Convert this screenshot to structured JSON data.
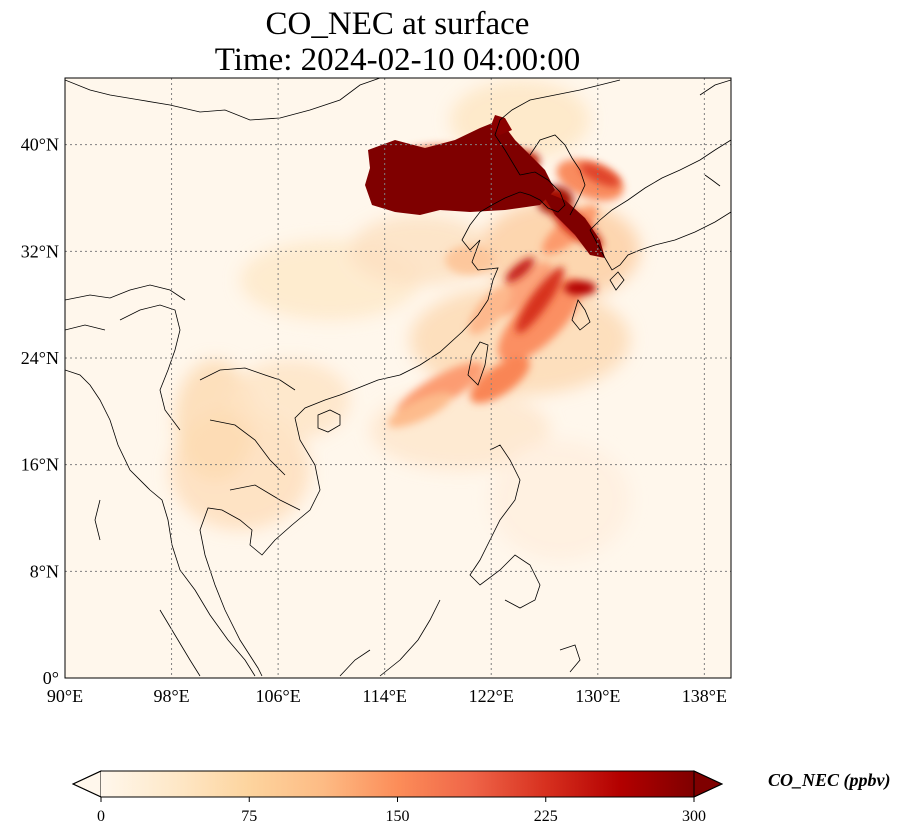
{
  "title_line1": "CO_NEC at surface",
  "title_line2": "Time: 2024-02-10 04:00:00",
  "map": {
    "lon_range": [
      90,
      140
    ],
    "lat_range": [
      0,
      45
    ],
    "lon_ticks": [
      "90°E",
      "98°E",
      "106°E",
      "114°E",
      "122°E",
      "130°E",
      "138°E"
    ],
    "lat_ticks": [
      "0°",
      "8°N",
      "16°N",
      "24°N",
      "32°N",
      "40°N"
    ],
    "gridlines": true,
    "gridline_color": "#808080",
    "coastline_color": "#000000"
  },
  "colorbar": {
    "label": "CO_NEC (ppbv)",
    "min": 0,
    "max": 300,
    "ticks": [
      "0",
      "75",
      "150",
      "225",
      "300"
    ],
    "colormap": "OrRd",
    "stops": [
      "#fff7ec",
      "#fee8c8",
      "#fdd49e",
      "#fdbb84",
      "#fc8d59",
      "#ef6548",
      "#d7301f",
      "#b30000",
      "#7f0000"
    ],
    "extend": "both"
  }
}
